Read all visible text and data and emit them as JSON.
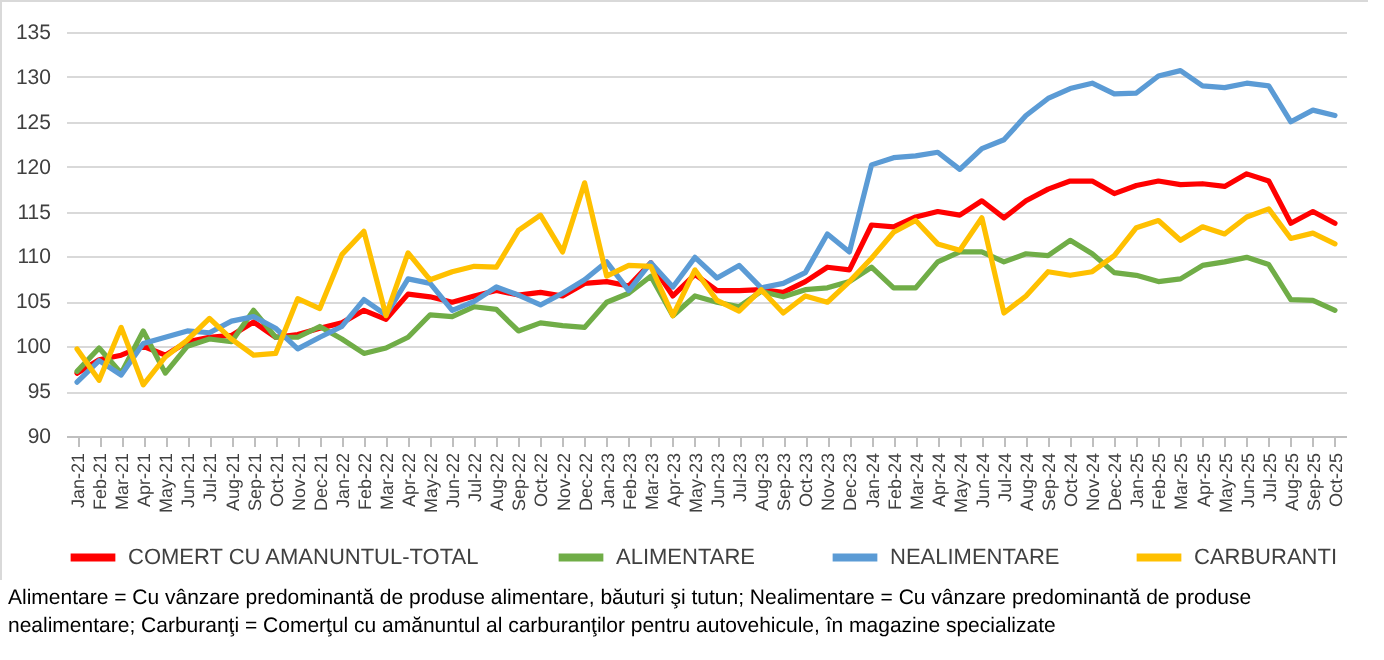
{
  "chart_data": {
    "type": "line",
    "categories": [
      "Jan-21",
      "Feb-21",
      "Mar-21",
      "Apr-21",
      "May-21",
      "Jun-21",
      "Jul-21",
      "Aug-21",
      "Sep-21",
      "Oct-21",
      "Nov-21",
      "Dec-21",
      "Jan-22",
      "Feb-22",
      "Mar-22",
      "Apr-22",
      "May-22",
      "Jun-22",
      "Jul-22",
      "Aug-22",
      "Sep-22",
      "Oct-22",
      "Nov-22",
      "Dec-22",
      "Jan-23",
      "Feb-23",
      "Mar-23",
      "Apr-23",
      "May-23",
      "Jun-23",
      "Jul-23",
      "Aug-23",
      "Sep-23",
      "Oct-23",
      "Nov-23",
      "Dec-23",
      "Jan-24",
      "Feb-24",
      "Mar-24",
      "Apr-24",
      "May-24",
      "Jun-24",
      "Jul-24",
      "Aug-24",
      "Sep-24",
      "Oct-24",
      "Nov-24",
      "Dec-24",
      "Jan-25",
      "Feb-25",
      "Mar-25",
      "Apr-25",
      "May-25",
      "Jun-25",
      "Jul-25",
      "Aug-25",
      "Sep-25",
      "Oct-25"
    ],
    "series": [
      {
        "name": "COMERT CU AMANUNTUL-TOTAL",
        "color": "#ff0000",
        "values": [
          97,
          98.5,
          99,
          100,
          99,
          100.5,
          101,
          101.2,
          102.7,
          101,
          101.3,
          102,
          102.6,
          104,
          103,
          105.8,
          105.5,
          104.9,
          105.6,
          106.2,
          105.7,
          106,
          105.6,
          107,
          107.2,
          106.7,
          109.3,
          105.6,
          108,
          106.2,
          106.2,
          106.3,
          106,
          107.2,
          108.8,
          108.5,
          113.5,
          113.3,
          114.4,
          115,
          114.6,
          116.2,
          114.3,
          116.2,
          117.5,
          118.4,
          118.4,
          117,
          117.9,
          118.4,
          118,
          118.1,
          117.8,
          119.2,
          118.4,
          113.7,
          115,
          113.7
        ]
      },
      {
        "name": "ALIMENTARE",
        "color": "#70ad47",
        "values": [
          97.2,
          99.8,
          97,
          101.7,
          97,
          100,
          100.8,
          100.5,
          104,
          101,
          101,
          102.2,
          100.8,
          99.2,
          99.8,
          101,
          103.5,
          103.3,
          104.4,
          104.1,
          101.7,
          102.6,
          102.3,
          102.1,
          104.9,
          105.9,
          107.8,
          103.4,
          105.6,
          104.9,
          104.4,
          106.1,
          105.5,
          106.3,
          106.5,
          107.2,
          108.8,
          106.5,
          106.5,
          109.4,
          110.5,
          110.5,
          109.4,
          110.3,
          110.1,
          111.8,
          110.3,
          108.2,
          107.9,
          107.2,
          107.5,
          109,
          109.4,
          109.9,
          109.1,
          105.2,
          105.1,
          104
        ]
      },
      {
        "name": "NEALIMENTARE",
        "color": "#5b9bd5",
        "values": [
          96,
          98.4,
          96.8,
          100.3,
          101,
          101.7,
          101.5,
          102.8,
          103.3,
          102,
          99.7,
          101,
          102.2,
          105.2,
          103.5,
          107.5,
          107,
          104,
          105,
          106.6,
          105.7,
          104.6,
          105.9,
          107.4,
          109.4,
          106.2,
          109.3,
          106.6,
          109.9,
          107.6,
          109,
          106.5,
          107,
          108.2,
          112.5,
          110.5,
          120.2,
          121,
          121.2,
          121.6,
          119.7,
          122,
          123,
          125.7,
          127.6,
          128.7,
          129.3,
          128.1,
          128.2,
          130.1,
          130.7,
          129,
          128.8,
          129.3,
          129,
          125,
          126.3,
          125.7
        ]
      },
      {
        "name": "CARBURANTI",
        "color": "#ffc000",
        "values": [
          99.7,
          96.2,
          102.1,
          95.7,
          98.8,
          100.7,
          103.1,
          100.8,
          99,
          99.2,
          105.3,
          104.2,
          110.2,
          112.8,
          103.4,
          110.4,
          107.4,
          108.3,
          108.9,
          108.8,
          112.9,
          114.6,
          110.5,
          118.2,
          107.8,
          109,
          108.9,
          103.4,
          108.5,
          105.1,
          103.9,
          106.3,
          103.7,
          105.6,
          104.9,
          107.2,
          109.8,
          112.7,
          114,
          111.4,
          110.7,
          114.3,
          103.7,
          105.6,
          108.3,
          107.9,
          108.3,
          110.1,
          113.2,
          114,
          111.8,
          113.3,
          112.5,
          114.4,
          115.3,
          112,
          112.6,
          111.4
        ]
      }
    ],
    "ylim": [
      90,
      135
    ],
    "yticks": [
      90,
      95,
      100,
      105,
      110,
      115,
      120,
      125,
      130,
      135
    ],
    "grid": "y",
    "legend": "bottom",
    "marker": "none",
    "line_style": "solid",
    "annotations": [
      "Alimentare = Cu vânzare predominantă de produse alimentare, băuturi şi tutun; Nealimentare = Cu vânzare predominantă de produse nealimentare; Carburanţi = Comerţul cu amănuntul al carburanţilor pentru autovehicule, în magazine specializate"
    ]
  }
}
